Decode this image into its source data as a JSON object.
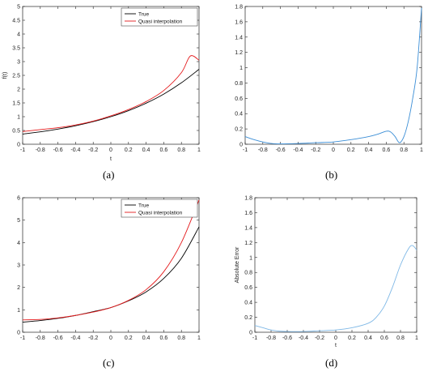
{
  "chart_data": [
    {
      "id": "a",
      "caption": "(a)",
      "type": "line",
      "xlabel": "t",
      "ylabel": "f(t)",
      "xlim": [
        -1,
        1
      ],
      "ylim": [
        0,
        5
      ],
      "xticks": [
        "-1",
        "-0.8",
        "-0.6",
        "-0.4",
        "-0.2",
        "0",
        "0.2",
        "0.4",
        "0.6",
        "0.8",
        "1"
      ],
      "yticks": [
        "0",
        "0.5",
        "1",
        "1.5",
        "2",
        "2.5",
        "3",
        "3.5",
        "4",
        "4.5",
        "5"
      ],
      "legend": {
        "placement": "top-right",
        "entries": [
          "True",
          "Quasi interpolation"
        ]
      },
      "series": [
        {
          "name": "True",
          "color": "#000000",
          "x": [
            -1,
            -0.8,
            -0.6,
            -0.4,
            -0.2,
            0,
            0.2,
            0.4,
            0.6,
            0.8,
            1
          ],
          "y": [
            0.37,
            0.45,
            0.55,
            0.67,
            0.82,
            1.0,
            1.22,
            1.49,
            1.82,
            2.23,
            2.72
          ]
        },
        {
          "name": "Quasi interpolation",
          "color": "#e41a1c",
          "x": [
            -1,
            -0.8,
            -0.6,
            -0.4,
            -0.2,
            0,
            0.2,
            0.4,
            0.6,
            0.8,
            0.9,
            1
          ],
          "y": [
            0.46,
            0.53,
            0.6,
            0.7,
            0.84,
            1.03,
            1.26,
            1.55,
            1.95,
            2.6,
            3.2,
            3.05
          ]
        }
      ]
    },
    {
      "id": "b",
      "caption": "(b)",
      "type": "line",
      "xlabel": "",
      "ylabel": "",
      "xlim": [
        -1,
        1
      ],
      "ylim": [
        0,
        1.8
      ],
      "xticks": [
        "-1",
        "-0.8",
        "-0.6",
        "-0.4",
        "-0.2",
        "0",
        "0.2",
        "0.4",
        "0.6",
        "0.8",
        "1"
      ],
      "yticks": [
        "0",
        "0.2",
        "0.4",
        "0.6",
        "0.8",
        "1",
        "1.2",
        "1.4",
        "1.6",
        "1.8"
      ],
      "series": [
        {
          "color": "#3b8ed6",
          "x": [
            -1,
            -0.9,
            -0.8,
            -0.7,
            -0.6,
            -0.4,
            -0.2,
            0,
            0.2,
            0.4,
            0.5,
            0.6,
            0.65,
            0.7,
            0.75,
            0.8,
            0.85,
            0.9,
            0.95,
            1
          ],
          "y": [
            0.1,
            0.06,
            0.03,
            0.01,
            0.005,
            0.01,
            0.02,
            0.03,
            0.06,
            0.1,
            0.13,
            0.17,
            0.16,
            0.1,
            0.02,
            0.1,
            0.3,
            0.6,
            1.0,
            1.78
          ]
        }
      ]
    },
    {
      "id": "c",
      "caption": "(c)",
      "type": "line",
      "xlabel": "",
      "ylabel": "",
      "xlim": [
        -1,
        1
      ],
      "ylim": [
        0,
        6
      ],
      "xticks": [
        "-1",
        "-0.8",
        "-0.6",
        "-0.4",
        "-0.2",
        "0",
        "0.2",
        "0.4",
        "0.6",
        "0.8",
        "1"
      ],
      "yticks": [
        "0",
        "1",
        "2",
        "3",
        "4",
        "5",
        "6"
      ],
      "legend": {
        "placement": "top-right",
        "entries": [
          "True",
          "Quasi interpolation"
        ]
      },
      "series": [
        {
          "name": "True",
          "color": "#000000",
          "x": [
            -1,
            -0.8,
            -0.6,
            -0.4,
            -0.2,
            0,
            0.2,
            0.4,
            0.6,
            0.8,
            1
          ],
          "y": [
            0.45,
            0.52,
            0.62,
            0.75,
            0.92,
            1.1,
            1.4,
            1.8,
            2.4,
            3.3,
            4.7
          ]
        },
        {
          "name": "Quasi interpolation",
          "color": "#e41a1c",
          "x": [
            -1,
            -0.8,
            -0.6,
            -0.4,
            -0.2,
            0,
            0.2,
            0.4,
            0.6,
            0.8,
            1
          ],
          "y": [
            0.55,
            0.57,
            0.64,
            0.75,
            0.9,
            1.1,
            1.42,
            1.9,
            2.7,
            4.0,
            5.9
          ]
        }
      ]
    },
    {
      "id": "d",
      "caption": "(d)",
      "type": "line",
      "xlabel": "t",
      "ylabel": "Absolute Error",
      "xlim": [
        -1,
        1
      ],
      "ylim": [
        0,
        1.8
      ],
      "xticks": [
        "-1",
        "-0.8",
        "-0.6",
        "-0.4",
        "-0.2",
        "0",
        "0.2",
        "0.4",
        "0.6",
        "0.8",
        "1"
      ],
      "yticks": [
        "0",
        "0.2",
        "0.4",
        "0.6",
        "0.8",
        "1",
        "1.2",
        "1.4",
        "1.6",
        "1.8"
      ],
      "series": [
        {
          "color": "#7fb8e6",
          "x": [
            -1,
            -0.9,
            -0.8,
            -0.7,
            -0.6,
            -0.4,
            -0.2,
            0,
            0.2,
            0.4,
            0.5,
            0.6,
            0.7,
            0.8,
            0.9,
            0.95,
            1
          ],
          "y": [
            0.09,
            0.06,
            0.03,
            0.015,
            0.01,
            0.01,
            0.02,
            0.03,
            0.06,
            0.12,
            0.2,
            0.35,
            0.6,
            0.9,
            1.12,
            1.16,
            1.1
          ]
        }
      ]
    }
  ]
}
